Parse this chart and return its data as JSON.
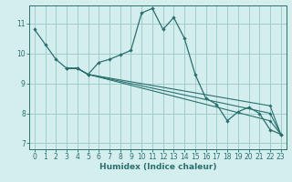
{
  "xlabel": "Humidex (Indice chaleur)",
  "bg_color": "#d4eeee",
  "grid_color": "#a0cccc",
  "line_color": "#2a7070",
  "xlim": [
    -0.5,
    23.5
  ],
  "ylim": [
    6.8,
    11.6
  ],
  "xticks": [
    0,
    1,
    2,
    3,
    4,
    5,
    6,
    7,
    8,
    9,
    10,
    11,
    12,
    13,
    14,
    15,
    16,
    17,
    18,
    19,
    20,
    21,
    22,
    23
  ],
  "yticks": [
    7,
    8,
    9,
    10,
    11
  ],
  "series": [
    {
      "x": [
        0,
        1,
        2,
        3,
        4,
        5,
        6,
        7,
        8,
        9,
        10,
        11,
        12,
        13,
        14,
        15,
        16,
        17,
        18,
        19,
        20,
        21,
        22,
        23
      ],
      "y": [
        10.8,
        10.3,
        9.8,
        9.5,
        9.5,
        9.3,
        9.7,
        9.8,
        9.95,
        10.1,
        11.35,
        11.5,
        10.8,
        11.2,
        10.5,
        9.3,
        8.5,
        8.3,
        7.75,
        8.05,
        8.2,
        8.0,
        7.45,
        7.3
      ]
    },
    {
      "x": [
        3,
        4,
        5,
        22,
        23
      ],
      "y": [
        9.5,
        9.5,
        9.3,
        7.75,
        7.3
      ]
    },
    {
      "x": [
        3,
        4,
        5,
        22,
        23
      ],
      "y": [
        9.5,
        9.5,
        9.3,
        8.0,
        7.3
      ]
    },
    {
      "x": [
        3,
        4,
        5,
        22,
        23
      ],
      "y": [
        9.5,
        9.5,
        9.3,
        8.25,
        7.3
      ]
    }
  ]
}
